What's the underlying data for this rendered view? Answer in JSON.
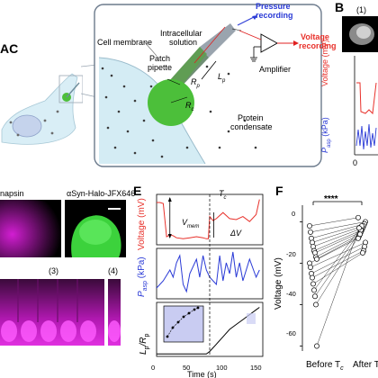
{
  "panels": {
    "a": {
      "letter_fragment": "AC"
    },
    "b": {
      "letter": "B",
      "inset_index": "(1)",
      "voltage_label": "Voltage (mV)",
      "pressure_label": "P",
      "pressure_sub": "asp",
      "pressure_unit": " (kPa)",
      "x_tick": "0"
    },
    "c": {
      "col1_title_fragment": "napsin",
      "col2_title": "αSyn-Halo-JFX646",
      "index_3": "(3)",
      "index_4": "(4)"
    },
    "e": {
      "letter": "E",
      "voltage_label": "Voltage (mV)",
      "tc_label": "T",
      "tc_sub": "c",
      "vmem_label": "V",
      "vmem_sub": "mem",
      "dv_label": "ΔV",
      "pressure_label": "P",
      "pressure_sub": "asp",
      "pressure_unit": " (kPa)",
      "lp_label": "L",
      "lp_sub": "p",
      "rp_label": "/R",
      "rp_sub": "p",
      "x_ticks": [
        "0",
        "50",
        "100",
        "150"
      ],
      "xlabel": "Time (s)"
    },
    "f": {
      "letter": "F",
      "ylabel": "Voltage (mV)",
      "significance": "****",
      "y_ticks": [
        "0",
        "-20",
        "-40",
        "-60"
      ],
      "x_label_before": "Before T",
      "x_label_after": "After T",
      "x_sub": "c"
    }
  },
  "schematic": {
    "cell_membrane": "Cell membrane",
    "intracellular": "Intracellular",
    "solution": "solution",
    "patch": "Patch",
    "pipette": "pipette",
    "pressure": "Pressure",
    "recording": "recording",
    "voltage": "Voltage",
    "amplifier": "Amplifier",
    "protein": "Protein",
    "condensate": "condensate",
    "rc": "R",
    "rc_sub": "c",
    "rp": "R",
    "rp_sub": "p",
    "lp": "L",
    "lp_sub": "p"
  },
  "colors": {
    "voltage": "#e8312b",
    "pressure": "#2a3ad6",
    "condensate": "#4cbf3a",
    "magenta": "#d21ed2",
    "schematic_box": "#6b7a8c",
    "membrane": "#d4ecf4"
  },
  "chart_data": [
    {
      "type": "line",
      "panel": "E-voltage",
      "x": [
        0,
        5,
        10,
        15,
        20,
        25,
        30,
        40,
        50,
        60,
        70,
        75,
        78,
        80,
        85,
        90,
        95,
        100,
        110,
        120,
        130,
        140,
        150,
        155
      ],
      "y": [
        -8,
        -8,
        -9,
        -42,
        -40,
        -41,
        -43,
        -44,
        -43,
        -42,
        -43,
        -44,
        -44,
        -22,
        -26,
        -24,
        -21,
        -18,
        -24,
        -25,
        -22,
        -27,
        -20,
        -5
      ],
      "ylim": [
        -50,
        0
      ],
      "xlim": [
        0,
        160
      ]
    },
    {
      "type": "line",
      "panel": "E-pressure",
      "x": [
        0,
        10,
        20,
        25,
        30,
        35,
        40,
        45,
        50,
        60,
        65,
        70,
        75,
        80,
        90,
        95,
        100,
        105,
        110,
        115,
        120,
        125,
        130,
        140,
        150,
        155
      ],
      "y": [
        0.3,
        0.5,
        0.8,
        0.6,
        1.0,
        1.2,
        0.4,
        0.2,
        0.7,
        1.1,
        0.6,
        1.2,
        0.8,
        0.6,
        0.4,
        1.2,
        0.5,
        1.0,
        0.7,
        1.3,
        0.6,
        1.0,
        0.5,
        1.1,
        0.6,
        0.8
      ],
      "ylim": [
        0,
        1.4
      ],
      "xlim": [
        0,
        160
      ]
    },
    {
      "type": "line",
      "panel": "E-Lp/Rp",
      "x": [
        0,
        20,
        40,
        60,
        75,
        80,
        90,
        100,
        110,
        120,
        130,
        140,
        150,
        155
      ],
      "y": [
        0.05,
        0.05,
        0.05,
        0.05,
        0.05,
        0.1,
        0.25,
        0.4,
        0.55,
        0.65,
        0.75,
        0.85,
        0.95,
        1.0
      ],
      "ylim": [
        0,
        1.1
      ],
      "xlim": [
        0,
        160
      ]
    },
    {
      "type": "scatter",
      "panel": "F",
      "categories": [
        "Before",
        "After"
      ],
      "before": [
        -2,
        -5,
        -8,
        -10,
        -12,
        -14,
        -15,
        -17,
        -18,
        -20,
        -22,
        -25,
        -27,
        -30,
        -33,
        -36,
        -40,
        -60
      ],
      "after": [
        2,
        0,
        -1,
        -2,
        -3,
        -4,
        -5,
        -6,
        -7,
        -8,
        -10,
        -12,
        -14,
        -15,
        -2,
        -4,
        -6,
        -3
      ],
      "ylim": [
        -65,
        8
      ]
    }
  ]
}
